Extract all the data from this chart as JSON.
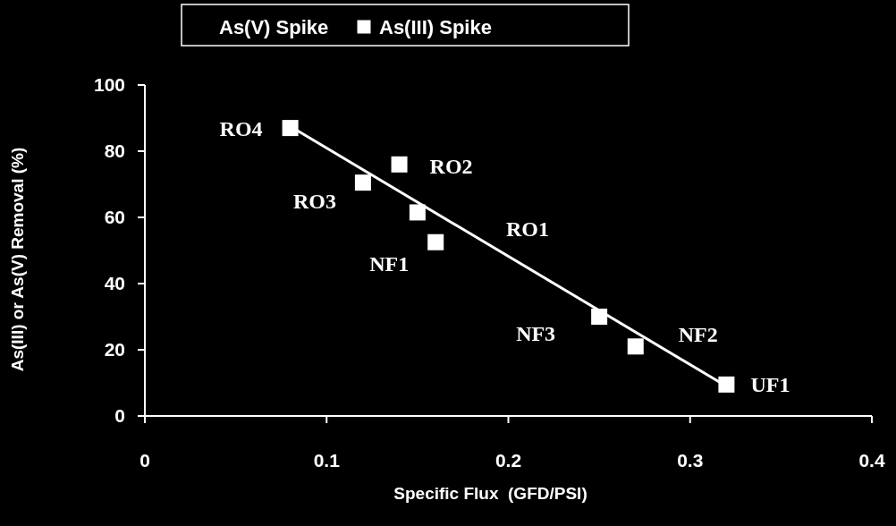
{
  "chart_data": {
    "type": "scatter",
    "xlabel": "Specific Flux  (GFD/PSI)",
    "ylabel": "As(III) or As(V) Removal (%)",
    "xlim": [
      0,
      0.4
    ],
    "xticks": [
      0,
      0.1,
      0.2,
      0.3,
      0.4
    ],
    "ylim": [
      0,
      100
    ],
    "yticks": [
      0,
      20,
      40,
      60,
      80,
      100
    ],
    "grid": false,
    "legend": "top",
    "series": [
      {
        "name": "As(V) Spike"
      },
      {
        "name": "As(III) Spike",
        "color": "#ffffff",
        "marker": "square",
        "x": [
          0.08,
          0.14,
          0.12,
          0.15,
          0.16,
          0.25,
          0.27,
          0.32
        ],
        "values": [
          87,
          76,
          70.5,
          61.5,
          52.5,
          30,
          21,
          9.5
        ]
      },
      {
        "type": "line",
        "color": "#ffffff",
        "x": [
          0.08,
          0.32
        ],
        "values": [
          87.5,
          9
        ]
      }
    ],
    "annotations": [
      {
        "text": "RO4",
        "x": 0.08,
        "y": 87
      },
      {
        "text": "RO2",
        "x": 0.14,
        "y": 76
      },
      {
        "text": "RO3",
        "x": 0.12,
        "y": 70.5
      },
      "RO1",
      {
        "text": "NF1",
        "x": 0.16,
        "y": 52.5
      },
      {
        "text": "NF3",
        "x": 0.25,
        "y": 30
      },
      {
        "text": "NF2",
        "x": 0.27,
        "y": 21
      },
      {
        "text": "UF1",
        "x": 0.32,
        "y": 9.5
      }
    ]
  }
}
